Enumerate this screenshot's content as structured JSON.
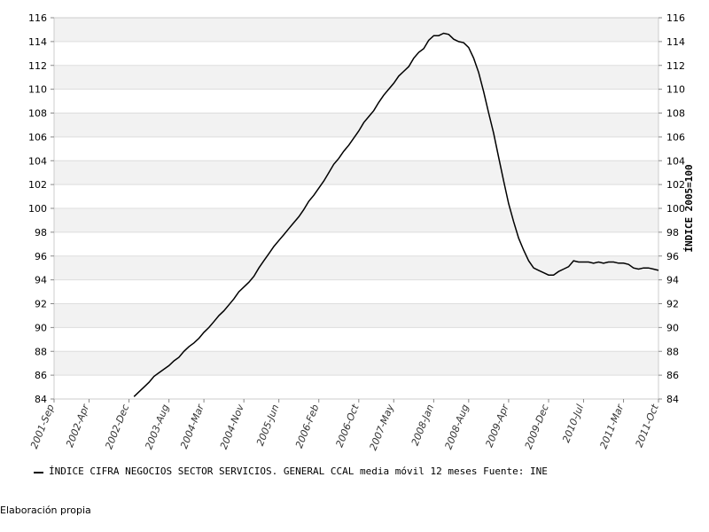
{
  "chart_data": {
    "type": "line",
    "ylabel": "ÍNDICE 2005=100",
    "ylim": [
      84,
      116
    ],
    "yticks": [
      84,
      86,
      88,
      90,
      92,
      94,
      96,
      98,
      100,
      102,
      104,
      106,
      108,
      110,
      112,
      114,
      116
    ],
    "y_tick_labels": [
      "84",
      "86",
      "88",
      "90",
      "92",
      "94",
      "96",
      "98",
      "100",
      "102",
      "104",
      "106",
      "108",
      "110",
      "112",
      "114",
      "116"
    ],
    "x_tick_labels": [
      "2001-Sep",
      "2002-Apr",
      "2002-Dec",
      "2003-Aug",
      "2004-Mar",
      "2004-Nov",
      "2005-Jun",
      "2006-Feb",
      "2006-Oct",
      "2007-May",
      "2008-Jan",
      "2008-Aug",
      "2009-Apr",
      "2009-Dec",
      "2010-Jul",
      "2011-Mar",
      "2011-Oct"
    ],
    "x_tick_positions": [
      "2001-09",
      "2002-04",
      "2002-12",
      "2003-08",
      "2004-03",
      "2004-11",
      "2005-06",
      "2006-02",
      "2006-10",
      "2007-05",
      "2008-01",
      "2008-08",
      "2009-04",
      "2009-12",
      "2010-07",
      "2011-03",
      "2011-10"
    ],
    "xlim": [
      "2001-09",
      "2011-10"
    ],
    "grid": true,
    "series": [
      {
        "color": "#000000",
        "x": [
          "2003-01",
          "2003-02",
          "2003-03",
          "2003-04",
          "2003-05",
          "2003-06",
          "2003-07",
          "2003-08",
          "2003-09",
          "2003-10",
          "2003-11",
          "2003-12",
          "2004-01",
          "2004-02",
          "2004-03",
          "2004-04",
          "2004-05",
          "2004-06",
          "2004-07",
          "2004-08",
          "2004-09",
          "2004-10",
          "2004-11",
          "2004-12",
          "2005-01",
          "2005-02",
          "2005-03",
          "2005-04",
          "2005-05",
          "2005-06",
          "2005-07",
          "2005-08",
          "2005-09",
          "2005-10",
          "2005-11",
          "2005-12",
          "2006-01",
          "2006-02",
          "2006-03",
          "2006-04",
          "2006-05",
          "2006-06",
          "2006-07",
          "2006-08",
          "2006-09",
          "2006-10",
          "2006-11",
          "2006-12",
          "2007-01",
          "2007-02",
          "2007-03",
          "2007-04",
          "2007-05",
          "2007-06",
          "2007-07",
          "2007-08",
          "2007-09",
          "2007-10",
          "2007-11",
          "2007-12",
          "2008-01",
          "2008-02",
          "2008-03",
          "2008-04",
          "2008-05",
          "2008-06",
          "2008-07",
          "2008-08",
          "2008-09",
          "2008-10",
          "2008-11",
          "2008-12",
          "2009-01",
          "2009-02",
          "2009-03",
          "2009-04",
          "2009-05",
          "2009-06",
          "2009-07",
          "2009-08",
          "2009-09",
          "2009-10",
          "2009-11",
          "2009-12",
          "2010-01",
          "2010-02",
          "2010-03",
          "2010-04",
          "2010-05",
          "2010-06",
          "2010-07",
          "2010-08",
          "2010-09",
          "2010-10",
          "2010-11",
          "2010-12",
          "2011-01",
          "2011-02",
          "2011-03",
          "2011-04",
          "2011-05",
          "2011-06",
          "2011-07",
          "2011-08",
          "2011-09",
          "2011-10"
        ],
        "values": [
          84.2,
          84.6,
          85.0,
          85.4,
          85.9,
          86.2,
          86.5,
          86.8,
          87.2,
          87.5,
          88.0,
          88.4,
          88.7,
          89.1,
          89.6,
          90.0,
          90.5,
          91.0,
          91.4,
          91.9,
          92.4,
          93.0,
          93.4,
          93.8,
          94.3,
          95.0,
          95.6,
          96.2,
          96.8,
          97.3,
          97.8,
          98.3,
          98.8,
          99.3,
          99.9,
          100.6,
          101.1,
          101.7,
          102.3,
          103.0,
          103.7,
          104.2,
          104.8,
          105.3,
          105.9,
          106.5,
          107.2,
          107.7,
          108.2,
          108.9,
          109.5,
          110.0,
          110.5,
          111.1,
          111.5,
          111.9,
          112.6,
          113.1,
          113.4,
          114.1,
          114.5,
          114.5,
          114.7,
          114.6,
          114.2,
          114.0,
          113.9,
          113.5,
          112.6,
          111.4,
          109.8,
          108.0,
          106.3,
          104.3,
          102.3,
          100.4,
          98.9,
          97.5,
          96.5,
          95.6,
          95.0,
          94.8,
          94.6,
          94.4,
          94.4,
          94.7,
          94.9,
          95.1,
          95.6,
          95.5,
          95.5,
          95.5,
          95.4,
          95.5,
          95.4,
          95.5,
          95.5,
          95.4,
          95.4,
          95.3,
          95.0,
          94.9,
          95.0,
          95.0,
          94.9,
          94.8
        ]
      }
    ]
  },
  "legend": {
    "text": "ÍNDICE CIFRA NEGOCIOS SECTOR SERVICIOS. GENERAL CCAL media móvil 12 meses  Fuente: INE"
  },
  "footer": {
    "text": "Elaboración propia"
  }
}
